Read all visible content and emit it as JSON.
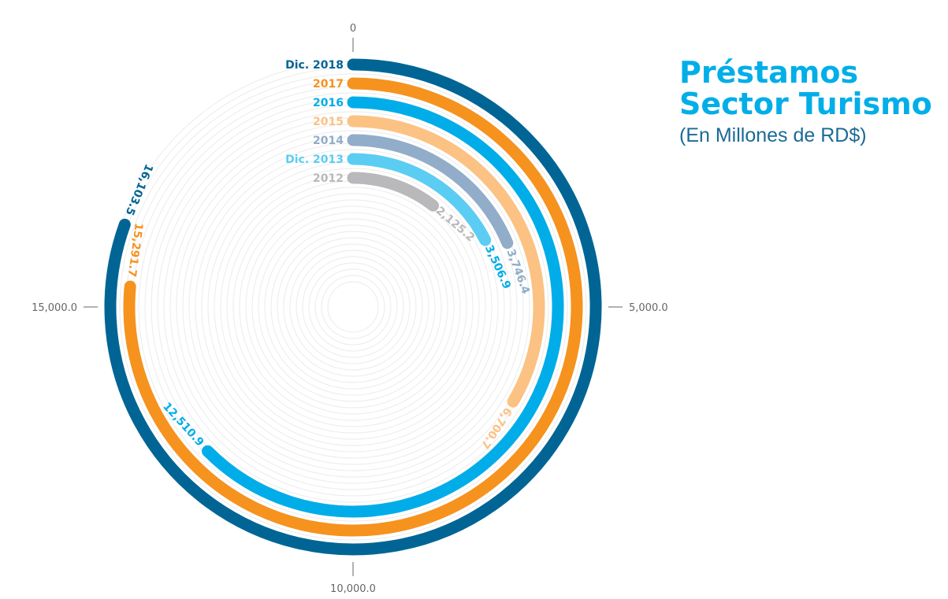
{
  "title": {
    "line1": "Préstamos",
    "line2": "Sector Turismo",
    "subtitle": "(En Millones de RD$)"
  },
  "chart_data": {
    "type": "radial-bar",
    "title": "Préstamos Sector Turismo",
    "subtitle": "(En Millones de RD$)",
    "axis_max": 20000,
    "axis_ticks": [
      {
        "value": 0,
        "label": "0"
      },
      {
        "value": 5000,
        "label": "5,000.0"
      },
      {
        "value": 10000,
        "label": "10,000.0"
      },
      {
        "value": 15000,
        "label": "15,000.0"
      }
    ],
    "series": [
      {
        "category": "2012",
        "value": 2125.2,
        "value_label": "2,125.2",
        "color": "#b9b9bc"
      },
      {
        "category": "Dic. 2013",
        "value": 3506.9,
        "value_label": "3,506.9",
        "color": "#5bcdf3"
      },
      {
        "category": "2014",
        "value": 3746.4,
        "value_label": "3,746.4",
        "color": "#91adc9"
      },
      {
        "category": "2015",
        "value": 6700.7,
        "value_label": "6,700.7",
        "color": "#fbc283"
      },
      {
        "category": "2016",
        "value": 12510.9,
        "value_label": "12,510.9",
        "color": "#00ade8"
      },
      {
        "category": "2017",
        "value": 15291.7,
        "value_label": "15,291.7",
        "color": "#f6921e"
      },
      {
        "category": "Dic. 2018",
        "value": 16103.5,
        "value_label": "16,103.5",
        "color": "#006594"
      }
    ],
    "value_label_colors": {
      "2012": "#b9b9bc",
      "Dic. 2013": "#00ade8",
      "2014": "#91adc9",
      "2015": "#fbc283",
      "2016": "#00ade8",
      "2017": "#f6921e",
      "Dic. 2018": "#006594"
    },
    "background_ring_color": "#eeeeee",
    "tick_color": "#666666"
  }
}
